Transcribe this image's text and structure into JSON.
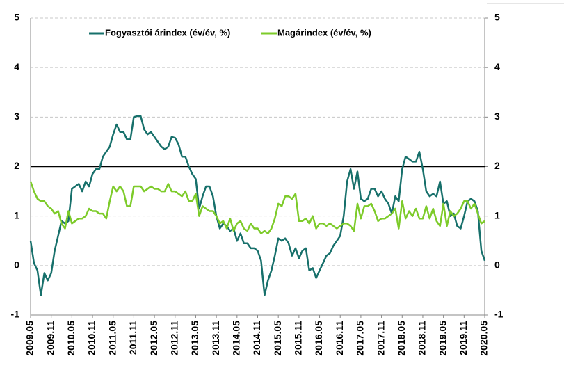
{
  "chart_data": {
    "type": "line",
    "categories": [
      "2009.05",
      null,
      null,
      null,
      null,
      null,
      "2009.11",
      null,
      null,
      null,
      null,
      null,
      "2010.05",
      null,
      null,
      null,
      null,
      null,
      "2010.11",
      null,
      null,
      null,
      null,
      null,
      "2011.05",
      null,
      null,
      null,
      null,
      null,
      "2011.11",
      null,
      null,
      null,
      null,
      null,
      "2012.05",
      null,
      null,
      null,
      null,
      null,
      "2012.11",
      null,
      null,
      null,
      null,
      null,
      "2013.05",
      null,
      null,
      null,
      null,
      null,
      "2013.11",
      null,
      null,
      null,
      null,
      null,
      "2014.05",
      null,
      null,
      null,
      null,
      null,
      "2014.11",
      null,
      null,
      null,
      null,
      null,
      "2015.05",
      null,
      null,
      null,
      null,
      null,
      "2015.11",
      null,
      null,
      null,
      null,
      null,
      "2016.05",
      null,
      null,
      null,
      null,
      null,
      "2016.11",
      null,
      null,
      null,
      null,
      null,
      "2017.05",
      null,
      null,
      null,
      null,
      null,
      "2017.11",
      null,
      null,
      null,
      null,
      null,
      "2018.05",
      null,
      null,
      null,
      null,
      null,
      "2018.11",
      null,
      null,
      null,
      null,
      null,
      "2019.05",
      null,
      null,
      null,
      null,
      null,
      "2019.11",
      null,
      null,
      null,
      null,
      null,
      "2020.05"
    ],
    "series": [
      {
        "name": "Fogyasztói árindex (év/év, %)",
        "color": "#17706b",
        "values": [
          0.5,
          0.05,
          -0.1,
          -0.6,
          -0.15,
          -0.3,
          -0.15,
          0.3,
          0.6,
          0.9,
          0.85,
          0.9,
          1.55,
          1.6,
          1.65,
          1.5,
          1.7,
          1.6,
          1.85,
          1.95,
          1.95,
          2.2,
          2.3,
          2.4,
          2.65,
          2.85,
          2.7,
          2.7,
          2.55,
          2.55,
          3.0,
          3.02,
          3.02,
          2.75,
          2.65,
          2.7,
          2.6,
          2.5,
          2.4,
          2.35,
          2.4,
          2.6,
          2.58,
          2.45,
          2.2,
          2.2,
          2.0,
          1.85,
          1.75,
          1.15,
          1.4,
          1.6,
          1.6,
          1.4,
          1.0,
          0.75,
          0.85,
          0.8,
          0.7,
          0.75,
          0.5,
          0.65,
          0.45,
          0.45,
          0.35,
          0.35,
          0.3,
          0.1,
          -0.6,
          -0.3,
          -0.1,
          0.2,
          0.55,
          0.5,
          0.55,
          0.45,
          0.2,
          0.35,
          0.15,
          0.3,
          0.35,
          -0.1,
          -0.05,
          -0.25,
          -0.1,
          0.05,
          0.2,
          0.25,
          0.4,
          0.5,
          0.6,
          1.0,
          1.7,
          1.95,
          1.55,
          1.9,
          1.35,
          1.3,
          1.35,
          1.55,
          1.55,
          1.4,
          1.5,
          1.35,
          1.25,
          1.05,
          1.4,
          1.3,
          1.95,
          2.2,
          2.15,
          2.1,
          2.1,
          2.3,
          1.95,
          1.5,
          1.4,
          1.45,
          1.4,
          1.7,
          1.25,
          1.3,
          1.0,
          1.05,
          0.8,
          0.75,
          1.0,
          1.3,
          1.35,
          1.3,
          1.1,
          0.3,
          0.1
        ]
      },
      {
        "name": "Magárindex (év/év, %)",
        "color": "#7dcb2a",
        "values": [
          1.7,
          1.5,
          1.35,
          1.3,
          1.3,
          1.2,
          1.15,
          1.05,
          1.1,
          0.85,
          0.75,
          1.1,
          0.85,
          0.9,
          0.95,
          0.95,
          1.0,
          1.15,
          1.1,
          1.1,
          1.05,
          1.05,
          0.95,
          1.3,
          1.6,
          1.5,
          1.6,
          1.5,
          1.2,
          1.2,
          1.6,
          1.6,
          1.6,
          1.5,
          1.55,
          1.6,
          1.55,
          1.55,
          1.5,
          1.5,
          1.65,
          1.5,
          1.5,
          1.45,
          1.4,
          1.5,
          1.3,
          1.3,
          1.45,
          1.0,
          1.2,
          1.15,
          1.1,
          1.1,
          1.0,
          0.85,
          0.9,
          0.75,
          0.95,
          0.7,
          0.85,
          0.9,
          0.75,
          0.7,
          0.85,
          0.75,
          0.75,
          0.65,
          0.7,
          0.65,
          0.75,
          0.95,
          1.25,
          1.2,
          1.4,
          1.4,
          1.35,
          1.45,
          0.9,
          0.9,
          0.95,
          0.85,
          1.0,
          0.75,
          0.85,
          0.85,
          0.8,
          0.85,
          0.8,
          0.75,
          0.8,
          0.85,
          0.85,
          0.8,
          0.7,
          1.25,
          0.95,
          1.2,
          1.2,
          1.25,
          1.1,
          0.9,
          0.95,
          0.95,
          1.0,
          1.05,
          1.15,
          0.75,
          1.3,
          0.95,
          1.1,
          1.0,
          1.15,
          0.95,
          0.95,
          1.2,
          0.95,
          1.15,
          0.9,
          0.8,
          1.25,
          0.8,
          1.1,
          1.0,
          1.05,
          1.15,
          1.3,
          1.3,
          1.15,
          1.25,
          1.05,
          0.85,
          0.9
        ]
      }
    ],
    "hline": 2,
    "hline_color": "#000000",
    "ylim": [
      -1,
      5
    ],
    "yticks": [
      -1,
      0,
      1,
      2,
      3,
      4,
      5
    ],
    "y2lim": [
      -1,
      5
    ],
    "y2ticks": [
      -1,
      0,
      1,
      2,
      3,
      4,
      5
    ],
    "grid": true
  }
}
